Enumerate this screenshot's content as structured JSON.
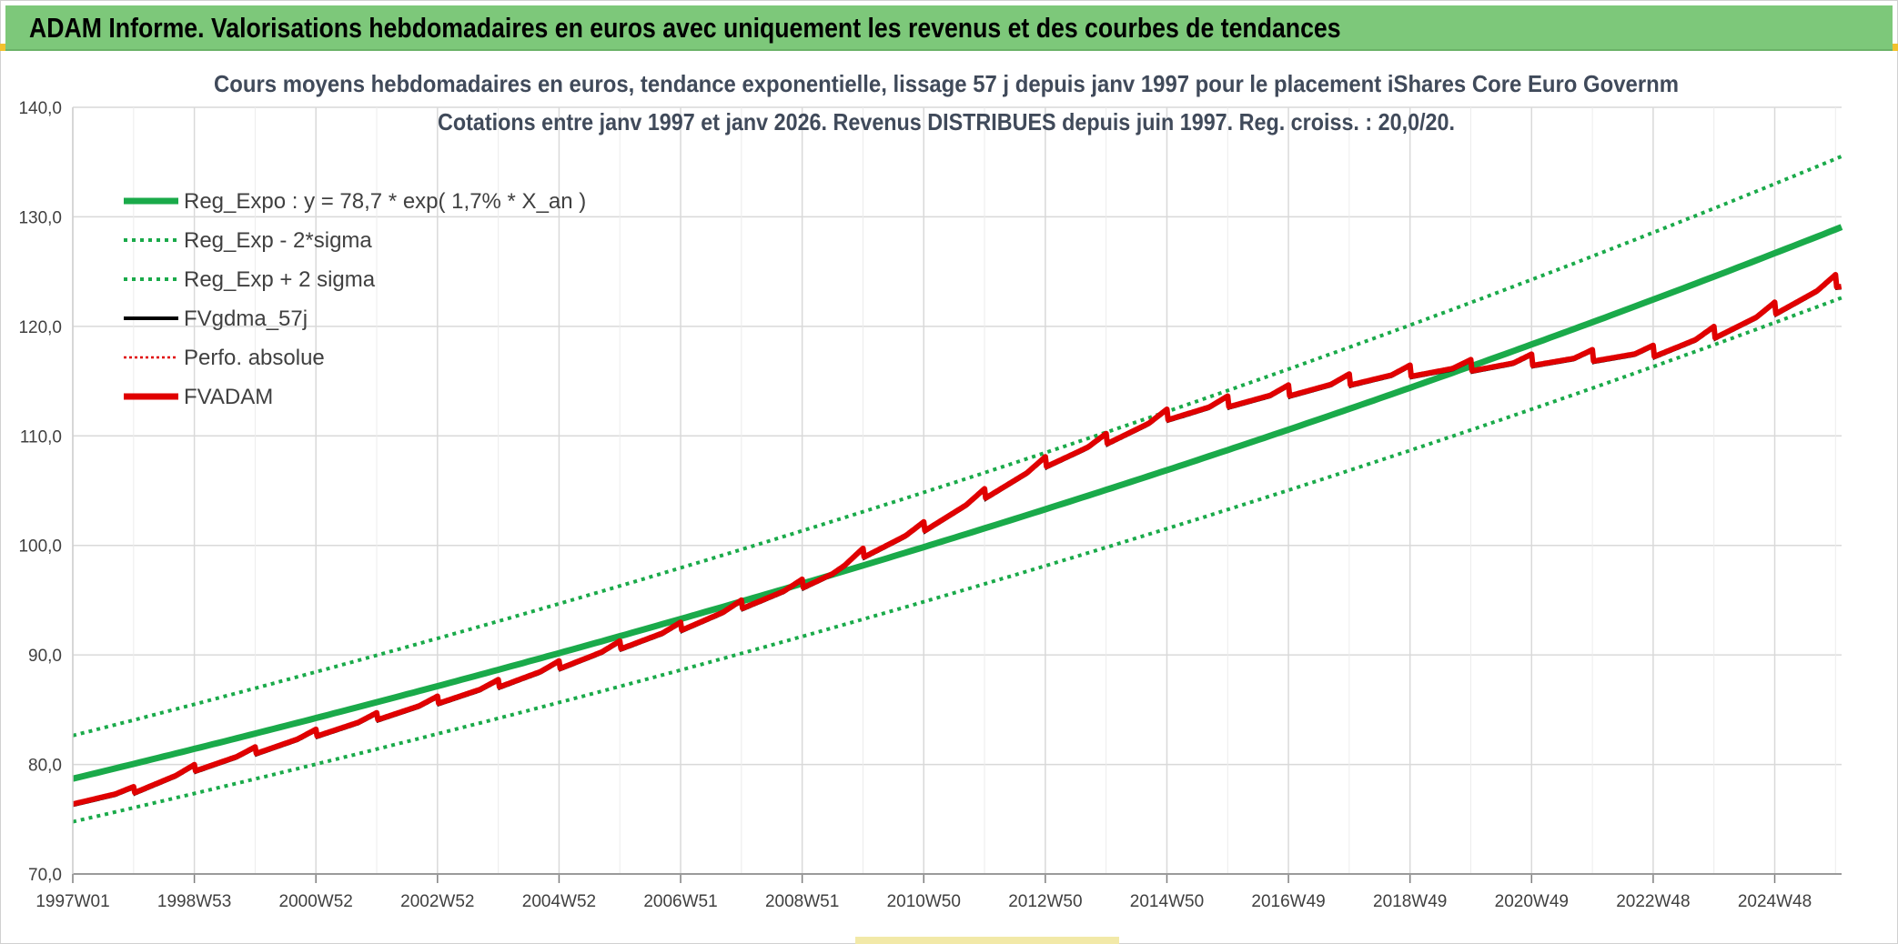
{
  "banner": {
    "title": "ADAM Informe. Valorisations hebdomadaires en euros avec uniquement les revenus et des courbes de tendances"
  },
  "colors": {
    "banner_bg": "#7dc87a",
    "reg_line": "#1aaa4a",
    "sigma_line": "#1aaa4a",
    "fv_line": "#000000",
    "perf_line": "#e00000",
    "adam_line": "#e00000",
    "grid": "#d9d9d9"
  },
  "chart_data": {
    "type": "line",
    "title_line1": "Cours moyens hebdomadaires en euros, tendance exponentielle, lissage 57 j depuis janv 1997 pour le placement iShares Core Euro Governm",
    "title_line2": "Cotations entre janv 1997 et janv 2026. Revenus DISTRIBUES depuis juin 1997. Reg. croiss. : 20,0/20.",
    "xlabel": "",
    "ylabel": "",
    "ylim": [
      70,
      140
    ],
    "y_ticks": [
      "70,0",
      "80,0",
      "90,0",
      "100,0",
      "110,0",
      "120,0",
      "130,0",
      "140,0"
    ],
    "x_tick_labels": [
      "1997W01",
      "1998W53",
      "2000W52",
      "2002W52",
      "2004W52",
      "2006W51",
      "2008W51",
      "2010W50",
      "2012W50",
      "2014W50",
      "2016W49",
      "2018W49",
      "2020W49",
      "2022W48",
      "2024W48"
    ],
    "x_range_years": [
      1997.0,
      2026.1
    ],
    "grid": true,
    "legend_position": "top-left",
    "regression": {
      "a": 78.7,
      "rate_pct": 1.7,
      "sigma_factor_low": 0.95,
      "sigma_factor_high": 1.05
    },
    "series": [
      {
        "name": "Reg_Expo : y = 78,7 * exp( 1,7% *  X_an )",
        "style": "solid-thick",
        "color": "#1aaa4a"
      },
      {
        "name": "Reg_Exp - 2*sigma",
        "style": "dotted",
        "color": "#1aaa4a"
      },
      {
        "name": "Reg_Exp + 2 sigma",
        "style": "dotted",
        "color": "#1aaa4a"
      },
      {
        "name": "FVgdma_57j",
        "style": "solid",
        "color": "#000000"
      },
      {
        "name": "Perfo. absolue",
        "style": "dotted-thin",
        "color": "#e00000"
      },
      {
        "name": "FVADAM",
        "style": "solid-thick",
        "color": "#e00000",
        "points": [
          [
            1997.0,
            76.6
          ],
          [
            1998.0,
            77.6
          ],
          [
            1999.0,
            79.6
          ],
          [
            2000.0,
            81.2
          ],
          [
            2001.0,
            82.8
          ],
          [
            2002.0,
            84.3
          ],
          [
            2003.0,
            85.8
          ],
          [
            2004.0,
            87.3
          ],
          [
            2005.0,
            89.0
          ],
          [
            2006.0,
            90.8
          ],
          [
            2007.0,
            92.5
          ],
          [
            2008.0,
            94.5
          ],
          [
            2009.0,
            96.4
          ],
          [
            2009.5,
            97.5
          ],
          [
            2010.0,
            99.2
          ],
          [
            2011.0,
            101.6
          ],
          [
            2012.0,
            104.6
          ],
          [
            2013.0,
            107.5
          ],
          [
            2014.0,
            109.6
          ],
          [
            2015.0,
            111.8
          ],
          [
            2016.0,
            113.0
          ],
          [
            2017.0,
            114.0
          ],
          [
            2018.0,
            115.0
          ],
          [
            2019.0,
            115.8
          ],
          [
            2020.0,
            116.3
          ],
          [
            2021.0,
            116.8
          ],
          [
            2022.0,
            117.2
          ],
          [
            2023.0,
            117.6
          ],
          [
            2024.0,
            119.3
          ],
          [
            2025.0,
            121.5
          ],
          [
            2026.0,
            124.0
          ]
        ]
      }
    ]
  }
}
